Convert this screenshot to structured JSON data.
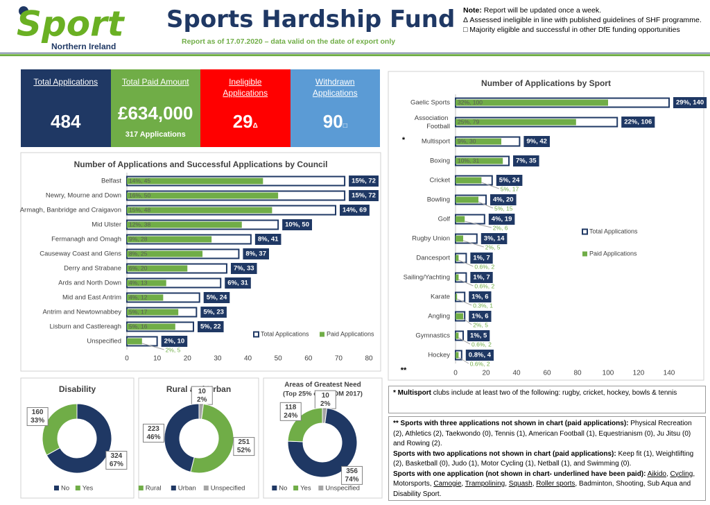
{
  "logo": {
    "word": "Sport",
    "region": "Northern Ireland"
  },
  "header": {
    "title": "Sports Hardship Fund",
    "subtitle": "Report as of 17.07.2020 – data valid on the date of export only"
  },
  "notes": {
    "note_label": "Note:",
    "note_text": " Report will be updated once a week.",
    "items": [
      "Δ Assessed ineligible in line with published guidelines of SHF programme.",
      "□ Majority eligible and successful in other DfE funding opportunities"
    ]
  },
  "kpis": [
    {
      "label": "Total Applications",
      "value": 484,
      "color": "#1f3864"
    },
    {
      "label": "Total Paid Amount",
      "value": 634000,
      "value_label": "£634,000",
      "sub": "317 Applications",
      "color": "#70ad47"
    },
    {
      "label": "Ineligible Applications",
      "value": 29,
      "marker": "Δ",
      "color": "#ff0000"
    },
    {
      "label": "Withdrawn Applications",
      "value": 90,
      "marker": "□",
      "color": "#5b9bd5"
    }
  ],
  "chart_data": [
    {
      "type": "bar",
      "orientation": "horizontal",
      "title": "Number of Applications and Successful Applications by Council",
      "categories": [
        "Belfast",
        "Newry, Mourne and Down",
        "Armagh, Banbridge and Craigavon",
        "Mid Ulster",
        "Fermanagh and Omagh",
        "Causeway Coast and Glens",
        "Derry and Strabane",
        "Ards and North Down",
        "Mid and East Antrim",
        "Antrim and Newtownabbey",
        "Lisburn and Castlereagh",
        "Unspecified"
      ],
      "series": [
        {
          "name": "Total Applications",
          "color": "#1f3864",
          "values": [
            72,
            72,
            69,
            50,
            41,
            37,
            33,
            31,
            24,
            23,
            22,
            10
          ],
          "value_labels": [
            "15%, 72",
            "15%, 72",
            "14%, 69",
            "10%, 50",
            "8%, 41",
            "8%, 37",
            "7%, 33",
            "6%, 31",
            "5%, 24",
            "5%, 23",
            "5%, 22",
            "2%, 10"
          ]
        },
        {
          "name": "Paid Applications",
          "color": "#70ad47",
          "values": [
            45,
            50,
            48,
            38,
            28,
            25,
            20,
            13,
            12,
            17,
            16,
            5
          ],
          "value_labels": [
            "14%, 45",
            "16%, 50",
            "15%, 48",
            "12%, 38",
            "9%, 28",
            "8%, 25",
            "6%, 20",
            "4%, 13",
            "4%, 12",
            "5%, 17",
            "5%, 16",
            "2%, 5"
          ]
        }
      ],
      "xlim": [
        0,
        80
      ],
      "xticks": [
        0,
        10,
        20,
        30,
        40,
        50,
        60,
        70,
        80
      ]
    },
    {
      "type": "bar",
      "orientation": "horizontal",
      "title": "Number of Applications by Sport",
      "categories": [
        "Gaelic Sports",
        "Association Football",
        "Multisport",
        "Boxing",
        "Cricket",
        "Bowling",
        "Golf",
        "Rugby Union",
        "Dancesport",
        "Sailing/Yachting",
        "Karate",
        "Angling",
        "Gymnastics",
        "Hockey"
      ],
      "series": [
        {
          "name": "Total Applications",
          "color": "#1f3864",
          "values": [
            140,
            106,
            42,
            35,
            24,
            20,
            19,
            14,
            7,
            7,
            6,
            6,
            5,
            4
          ],
          "value_labels": [
            "29%, 140",
            "22%, 106",
            "9%, 42",
            "7%, 35",
            "5%, 24",
            "4%, 20",
            "4%, 19",
            "3%, 14",
            "1%, 7",
            "1%, 7",
            "1%, 6",
            "1%, 6",
            "1%, 5",
            "0.8%, 4"
          ]
        },
        {
          "name": "Paid Applications",
          "color": "#70ad47",
          "values": [
            100,
            79,
            30,
            31,
            17,
            15,
            6,
            5,
            2,
            2,
            1,
            5,
            2,
            2
          ],
          "value_labels": [
            "32%, 100",
            "25%, 79",
            "9%, 30",
            "10%, 31",
            "5%, 17",
            "5%, 15",
            "2%, 6",
            "2%, 5",
            "0.6%, 2",
            "0.6%, 2",
            "0.3%, 1",
            "2%, 5",
            "0.6%, 2",
            "0.6%, 2"
          ]
        }
      ],
      "xlim": [
        0,
        140
      ],
      "xticks": [
        0,
        20,
        40,
        60,
        80,
        100,
        120,
        140
      ],
      "annotations": [
        {
          "text": "*",
          "category": "Multisport"
        },
        {
          "text": "**"
        }
      ]
    },
    {
      "type": "pie",
      "donut": true,
      "title": "Disability",
      "categories": [
        "No",
        "Yes"
      ],
      "values": [
        324,
        160
      ],
      "percent_labels": [
        "67%",
        "33%"
      ],
      "colors": [
        "#1f3864",
        "#70ad47"
      ]
    },
    {
      "type": "pie",
      "donut": true,
      "title": "Rural and Urban",
      "categories": [
        "Rural",
        "Urban",
        "Unspecified"
      ],
      "values": [
        251,
        223,
        10
      ],
      "percent_labels": [
        "52%",
        "46%",
        "2%"
      ],
      "colors": [
        "#70ad47",
        "#1f3864",
        "#a5a5a5"
      ]
    },
    {
      "type": "pie",
      "donut": true,
      "title": "Areas of Greatest Need",
      "subtitle": "(Top 25% of NIMDM 2017)",
      "categories": [
        "No",
        "Yes",
        "Unspecified"
      ],
      "values": [
        356,
        118,
        10
      ],
      "percent_labels": [
        "74%",
        "24%",
        "2%"
      ],
      "colors": [
        "#1f3864",
        "#70ad47",
        "#a5a5a5"
      ]
    }
  ],
  "footnotes": {
    "multisport": {
      "head": "* Multisport",
      "text": " clubs include at least two of the following: rugby, cricket, hockey, bowls & tennis"
    },
    "paragraphs": [
      {
        "head": "** Sports with three applications not shown in chart (paid applications):",
        "text": " Physical Recreation (2), Athletics (2), Taekwondo (0), Tennis (1), American Football (1), Equestrianism (0), Ju Jitsu (0) and Rowing (2)."
      },
      {
        "head": "Sports with two applications not shown in chart (paid applications):",
        "text": " Keep fit (1), Weightlifting (2), Basketball (0), Judo (1), Motor Cycling (1), Netball (1), and Swimming (0)."
      },
      {
        "head": "Sports with one application (not shown in chart- underlined have been paid):",
        "segments": [
          {
            "text": " "
          },
          {
            "text": "Aikido",
            "underline": true
          },
          {
            "text": ", "
          },
          {
            "text": "Cycling",
            "underline": true
          },
          {
            "text": ", Motorsports, "
          },
          {
            "text": "Camogie",
            "underline": true
          },
          {
            "text": ", "
          },
          {
            "text": "Trampolining",
            "underline": true
          },
          {
            "text": ", "
          },
          {
            "text": "Squash",
            "underline": true
          },
          {
            "text": ", "
          },
          {
            "text": "Roller sports",
            "underline": true
          },
          {
            "text": ", Badminton, Shooting, Sub Aqua and Disability Sport."
          }
        ]
      }
    ]
  }
}
